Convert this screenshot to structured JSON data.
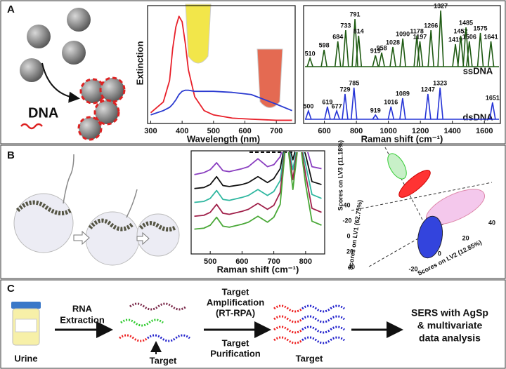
{
  "panel_a": {
    "label": "A",
    "dna_label": "DNA",
    "extinction": {
      "type": "line",
      "ylabel": "Extinction",
      "xlabel": "Wavelength (nm)",
      "xlim": [
        290,
        760
      ],
      "ylim": [
        0,
        1.1
      ],
      "xticks": [
        300,
        400,
        500,
        600,
        700
      ],
      "x": [
        300,
        340,
        360,
        370,
        380,
        390,
        400,
        410,
        420,
        440,
        470,
        500,
        560,
        620,
        700,
        750
      ],
      "series": [
        {
          "color": "#e8202a",
          "values": [
            0.1,
            0.2,
            0.4,
            0.7,
            0.9,
            1.0,
            0.95,
            0.75,
            0.5,
            0.25,
            0.12,
            0.08,
            0.05,
            0.04,
            0.03,
            0.03
          ]
        },
        {
          "color": "#2a3ad0",
          "values": [
            0.08,
            0.12,
            0.15,
            0.18,
            0.22,
            0.27,
            0.3,
            0.31,
            0.31,
            0.3,
            0.3,
            0.3,
            0.29,
            0.27,
            0.18,
            0.12
          ]
        }
      ]
    },
    "raman": {
      "type": "spectrum",
      "xlabel": "Raman shift (cm⁻¹)",
      "xlim": [
        470,
        1700
      ],
      "xticks": [
        600,
        800,
        1000,
        1200,
        1400,
        1600
      ],
      "series": [
        {
          "name": "ssDNA",
          "color": "#1e5a12",
          "peaks": [
            510,
            598,
            684,
            733,
            791,
            814,
            919,
            958,
            1028,
            1090,
            1178,
            1197,
            1266,
            1327,
            1419,
            1452,
            1485,
            1506,
            1575,
            1641
          ],
          "intensities": [
            0.15,
            0.3,
            0.45,
            0.65,
            0.85,
            0.55,
            0.2,
            0.25,
            0.35,
            0.5,
            0.55,
            0.45,
            0.65,
            1.0,
            0.4,
            0.55,
            0.7,
            0.45,
            0.6,
            0.45
          ]
        },
        {
          "name": "dsDNA",
          "color": "#2433d6",
          "peaks": [
            500,
            619,
            677,
            729,
            785,
            919,
            1016,
            1089,
            1247,
            1323,
            1651
          ],
          "intensities": [
            0.2,
            0.3,
            0.2,
            0.6,
            0.75,
            0.1,
            0.3,
            0.5,
            0.6,
            0.75,
            0.4
          ]
        }
      ]
    }
  },
  "panel_b": {
    "label": "B",
    "raman": {
      "type": "line",
      "xlabel": "Raman shift (cm⁻¹)",
      "xlim": [
        440,
        860
      ],
      "ylim": [
        0,
        10.4
      ],
      "xticks": [
        500,
        600,
        700,
        800
      ],
      "x": [
        450,
        480,
        500,
        520,
        540,
        560,
        600,
        620,
        650,
        680,
        700,
        720,
        740,
        760,
        780,
        800,
        820,
        850
      ],
      "series": [
        {
          "color": "#8a3fc0",
          "values": [
            8,
            8.2,
            8.5,
            9.2,
            8.4,
            8.3,
            8.6,
            8.8,
            9.6,
            8.8,
            9.0,
            9.8,
            12,
            10.5,
            12,
            11,
            8.8,
            8.6
          ]
        },
        {
          "color": "#111111",
          "values": [
            6.6,
            6.7,
            7,
            7.8,
            6.9,
            6.8,
            7,
            7.2,
            7.8,
            7.2,
            7.6,
            8.6,
            12,
            9.5,
            12,
            10,
            7.3,
            7
          ]
        },
        {
          "color": "#2fb7a0",
          "values": [
            5.2,
            5.3,
            5.6,
            6.4,
            5.5,
            5.4,
            5.7,
            5.9,
            6.5,
            5.9,
            6.3,
            7.4,
            12,
            8.5,
            12,
            9,
            6,
            5.6
          ]
        },
        {
          "color": "#a0204a",
          "values": [
            3.8,
            3.9,
            4.2,
            5,
            4.1,
            4,
            4.3,
            4.5,
            5.1,
            4.5,
            4.9,
            6.2,
            12,
            7.5,
            12,
            8,
            4.6,
            4.2
          ]
        },
        {
          "color": "#4aa838",
          "values": [
            2.5,
            2.6,
            2.9,
            3.7,
            2.8,
            2.7,
            3,
            3.2,
            3.8,
            3.2,
            3.7,
            5,
            12,
            6.5,
            12,
            7,
            3.3,
            2.9
          ]
        }
      ]
    },
    "scores": {
      "lv3_label": "Scores on LV3 (11.18%)",
      "lv1_label": "Scores on LV1 (62.75%)",
      "lv2_label": "Scores on LV2 (12.85%)",
      "lv1_ticks": [
        -40,
        -20,
        0,
        20,
        40
      ],
      "lv2_ticks": [
        -20,
        0,
        20,
        40
      ]
    }
  },
  "panel_c": {
    "label": "C",
    "urine": "Urine",
    "extraction": [
      "RNA",
      "Extraction"
    ],
    "target_1": "Target",
    "amplification": [
      "Target",
      "Amplification",
      "(RT-RPA)"
    ],
    "purification": [
      "Target",
      "Purification"
    ],
    "target_2": "Target",
    "analysis": [
      "SERS with AgSp",
      "& multivariate",
      "data analysis"
    ]
  }
}
